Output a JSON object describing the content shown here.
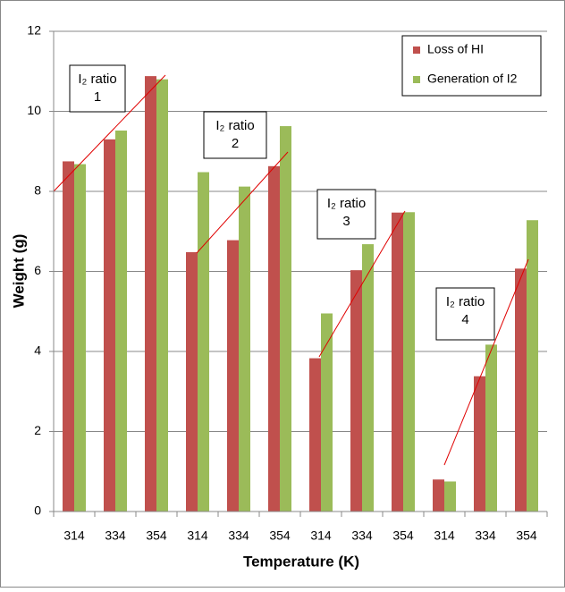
{
  "chart_data": {
    "type": "bar",
    "categories": [
      "314",
      "334",
      "354",
      "314",
      "334",
      "354",
      "314",
      "334",
      "354",
      "314",
      "334",
      "354"
    ],
    "series": [
      {
        "name": "Loss of HI",
        "color": "#c0504d",
        "values": [
          8.75,
          9.3,
          10.88,
          6.48,
          6.78,
          8.63,
          3.83,
          6.03,
          7.47,
          0.8,
          3.38,
          6.07
        ]
      },
      {
        "name": "Generation of I2",
        "color": "#9bbb59",
        "values": [
          8.68,
          9.52,
          10.8,
          8.48,
          8.12,
          9.63,
          4.95,
          6.68,
          7.48,
          0.75,
          4.17,
          7.28
        ]
      }
    ],
    "ylim": [
      0,
      12
    ],
    "yticks": [
      0,
      2,
      4,
      6,
      8,
      10,
      12
    ],
    "grid": true,
    "xlabel": "Temperature (K)",
    "ylabel": "Weight (g)",
    "legend": "upper right",
    "annotations": [
      {
        "lines": [
          "I₂ ratio",
          "1"
        ]
      },
      {
        "lines": [
          "I₂ ratio",
          "2"
        ]
      },
      {
        "lines": [
          "I₂ ratio",
          "3"
        ]
      },
      {
        "lines": [
          "I₂ ratio",
          "4"
        ]
      }
    ]
  }
}
